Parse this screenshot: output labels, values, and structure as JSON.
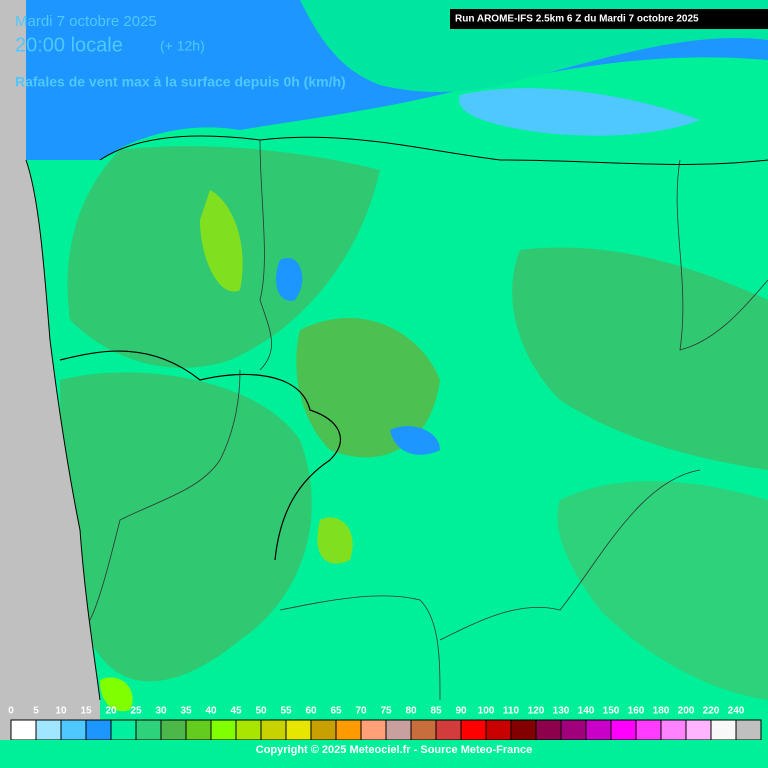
{
  "header": {
    "date": "Mardi 7 octobre 2025",
    "time": "20:00 locale",
    "offset": "(+ 12h)",
    "subtitle": "Rafales de vent max à la surface depuis 0h (km/h)",
    "run": "Run AROME-IFS 2.5km 6 Z du Mardi 7 octobre 2025"
  },
  "legend": {
    "labels": [
      0,
      5,
      10,
      15,
      20,
      25,
      30,
      35,
      40,
      45,
      50,
      55,
      60,
      65,
      70,
      75,
      80,
      85,
      90,
      100,
      110,
      120,
      130,
      140,
      150,
      160,
      180,
      200,
      220,
      240
    ],
    "colors": [
      "#ffffff",
      "#a0e6ff",
      "#4ec8ff",
      "#1e96ff",
      "#00f0a0",
      "#2ed27a",
      "#4cb84a",
      "#64cc1e",
      "#80ff00",
      "#a8e600",
      "#c8d200",
      "#e6e600",
      "#c8a000",
      "#ff9a00",
      "#ffa078",
      "#c8a0a0",
      "#c86e3c",
      "#d23c3c",
      "#ff0000",
      "#c80000",
      "#820000",
      "#8c004c",
      "#a0007c",
      "#c800c8",
      "#ff00ff",
      "#ff3cff",
      "#ff82ff",
      "#ffb4ff",
      "#f8f8f8",
      "#c0c0c0"
    ]
  },
  "footer": {
    "copyright": "Copyright © 2025 Meteociel.fr - Source Meteo-France"
  }
}
